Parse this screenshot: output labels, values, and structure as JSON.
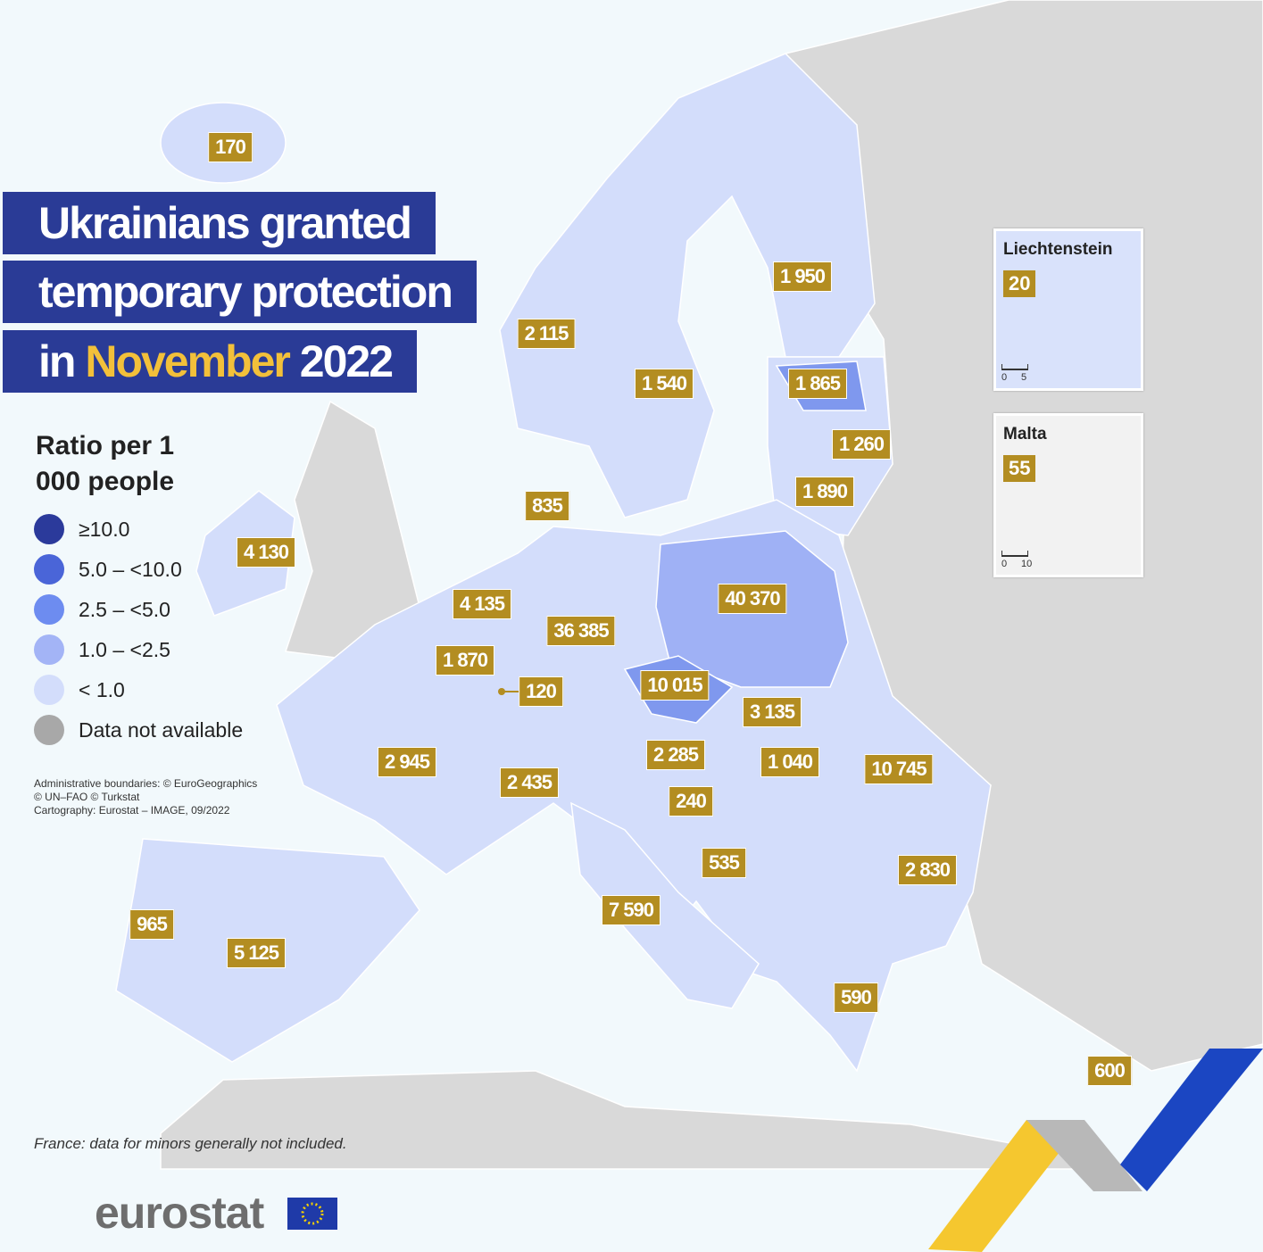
{
  "title": {
    "line1": "Ukrainians granted",
    "line2": "temporary protection",
    "line3_start": "in",
    "line3_month": "November",
    "line3_year": "2022"
  },
  "legend": {
    "title": "Ratio per 1 000 people",
    "items": [
      {
        "label": "≥10.0",
        "color": "#2b3a9b"
      },
      {
        "label": "5.0 – <10.0",
        "color": "#4a65d8"
      },
      {
        "label": "2.5 – <5.0",
        "color": "#6d8cf0"
      },
      {
        "label": "1.0 – <2.5",
        "color": "#a3b4f6"
      },
      {
        "label": "< 1.0",
        "color": "#d3ddfb"
      },
      {
        "label": "Data not available",
        "color": "#a8a8a8"
      }
    ]
  },
  "credits": [
    "Administrative boundaries: © EuroGeographics",
    "© UN–FAO © Turkstat",
    "Cartography: Eurostat – IMAGE, 09/2022"
  ],
  "labels": [
    "170",
    "2 115",
    "1 540",
    "1 950",
    "1 865",
    "1 260",
    "1 890",
    "835",
    "4 130",
    "4 135",
    "36 385",
    "40 370",
    "1 870",
    "120",
    "10 015",
    "3 135",
    "2 945",
    "2 435",
    "2 285",
    "1 040",
    "10 745",
    "240",
    "535",
    "2 830",
    "7 590",
    "965",
    "5 125",
    "590",
    "600"
  ],
  "insets": [
    {
      "name": "Liechtenstein",
      "value": "20",
      "scale": [
        "0",
        "5"
      ]
    },
    {
      "name": "Malta",
      "value": "55",
      "scale": [
        "0",
        "10"
      ]
    }
  ],
  "note": "France: data for minors generally not included.",
  "brand": "eurostat"
}
